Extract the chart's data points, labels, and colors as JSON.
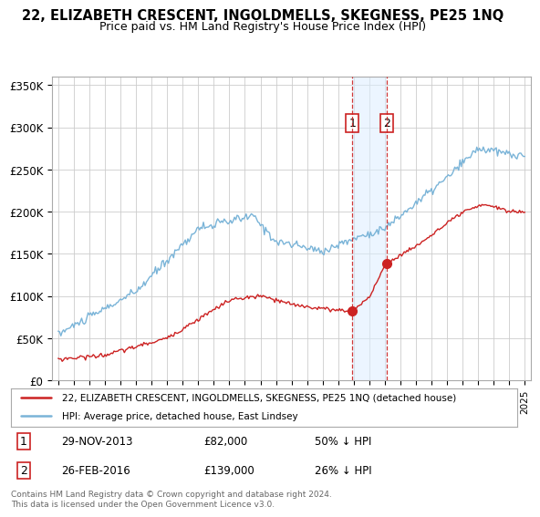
{
  "title": "22, ELIZABETH CRESCENT, INGOLDMELLS, SKEGNESS, PE25 1NQ",
  "subtitle": "Price paid vs. HM Land Registry's House Price Index (HPI)",
  "yticks": [
    0,
    50000,
    100000,
    150000,
    200000,
    250000,
    300000,
    350000
  ],
  "ytick_labels": [
    "£0",
    "£50K",
    "£100K",
    "£150K",
    "£200K",
    "£250K",
    "£300K",
    "£350K"
  ],
  "hpi_color": "#7ab4d8",
  "price_color": "#cc2222",
  "sale1_x": 2013.91,
  "sale2_x": 2016.12,
  "sale1_price": 82000,
  "sale2_price": 139000,
  "sale1_date_label": "29-NOV-2013",
  "sale2_date_label": "26-FEB-2016",
  "sale1_hpi_pct": "50% ↓ HPI",
  "sale2_hpi_pct": "26% ↓ HPI",
  "legend_line1": "22, ELIZABETH CRESCENT, INGOLDMELLS, SKEGNESS, PE25 1NQ (detached house)",
  "legend_line2": "HPI: Average price, detached house, East Lindsey",
  "footnote": "Contains HM Land Registry data © Crown copyright and database right 2024.\nThis data is licensed under the Open Government Licence v3.0.",
  "background_color": "#ffffff",
  "grid_color": "#cccccc",
  "highlight_box_color": "#ddeeff"
}
